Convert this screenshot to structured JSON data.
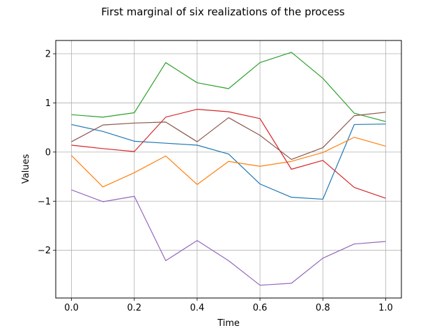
{
  "chart_data": {
    "type": "line",
    "title": "First marginal of six realizations of the process",
    "xlabel": "Time",
    "ylabel": "Values",
    "xlim": [
      -0.05,
      1.05
    ],
    "ylim": [
      -2.97,
      2.27
    ],
    "xticks": [
      0.0,
      0.2,
      0.4,
      0.6,
      0.8,
      1.0
    ],
    "xtick_labels": [
      "0.0",
      "0.2",
      "0.4",
      "0.6",
      "0.8",
      "1.0"
    ],
    "yticks": [
      2,
      1,
      0,
      -1,
      -2
    ],
    "ytick_labels": [
      "2",
      "1",
      "0",
      "−1",
      "−2"
    ],
    "grid": true,
    "x": [
      0.0,
      0.1,
      0.2,
      0.3,
      0.4,
      0.5,
      0.6,
      0.7,
      0.8,
      0.9,
      1.0
    ],
    "series": [
      {
        "color": "#1f77b4",
        "values": [
          0.56,
          0.42,
          0.22,
          0.18,
          0.14,
          -0.04,
          -0.65,
          -0.92,
          -0.96,
          0.56,
          0.57
        ]
      },
      {
        "color": "#ff7f0e",
        "values": [
          -0.07,
          -0.71,
          -0.42,
          -0.08,
          -0.66,
          -0.19,
          -0.29,
          -0.19,
          -0.01,
          0.3,
          0.12
        ]
      },
      {
        "color": "#2ca02c",
        "values": [
          0.76,
          0.71,
          0.8,
          1.82,
          1.41,
          1.29,
          1.82,
          2.03,
          1.5,
          0.79,
          0.62
        ]
      },
      {
        "color": "#d62728",
        "values": [
          0.14,
          0.07,
          0.01,
          0.71,
          0.87,
          0.82,
          0.68,
          -0.35,
          -0.17,
          -0.72,
          -0.94
        ]
      },
      {
        "color": "#9467bd",
        "values": [
          -0.77,
          -1.01,
          -0.9,
          -2.21,
          -1.8,
          -2.21,
          -2.71,
          -2.67,
          -2.16,
          -1.87,
          -1.82
        ]
      },
      {
        "color": "#8c564b",
        "values": [
          0.21,
          0.55,
          0.59,
          0.61,
          0.21,
          0.7,
          0.34,
          -0.15,
          0.09,
          0.74,
          0.81
        ]
      }
    ]
  }
}
